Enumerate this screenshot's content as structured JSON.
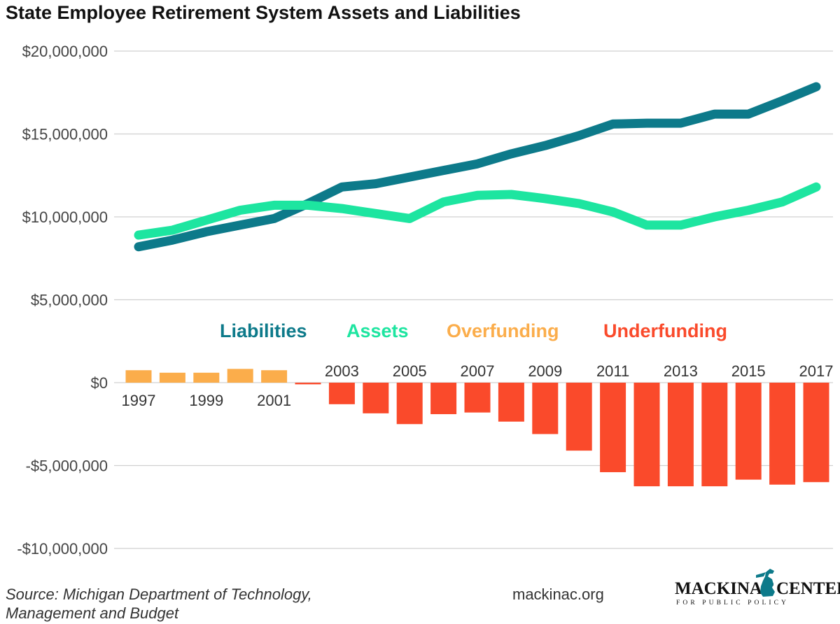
{
  "chart_data": {
    "type": "line+bar",
    "title": "State Employee Retirement System Assets and Liabilities",
    "ylim": [
      -10000000,
      20000000
    ],
    "yticks": [
      20000000,
      15000000,
      10000000,
      5000000,
      0,
      -5000000,
      -10000000
    ],
    "ytick_labels": [
      "$20,000,000",
      "$15,000,000",
      "$10,000,000",
      "$5,000,000",
      "$0",
      "-$5,000,000",
      "-$10,000,000"
    ],
    "x": [
      1997,
      1998,
      1999,
      2000,
      2001,
      2002,
      2003,
      2004,
      2005,
      2006,
      2007,
      2008,
      2009,
      2010,
      2011,
      2012,
      2013,
      2014,
      2015,
      2016,
      2017
    ],
    "xtick_labels": [
      "1997",
      "1999",
      "2001",
      "2003",
      "2005",
      "2007",
      "2009",
      "2011",
      "2013",
      "2015",
      "2017"
    ],
    "grid": true,
    "legend_position": "center",
    "series": [
      {
        "name": "Liabilities",
        "kind": "line",
        "color": "#0d7a8a",
        "values": [
          8200000,
          8600000,
          9100000,
          9500000,
          9900000,
          10800000,
          11800000,
          12000000,
          12400000,
          12800000,
          13200000,
          13800000,
          14300000,
          14900000,
          15600000,
          15650000,
          15650000,
          16200000,
          16200000,
          17000000,
          17850000
        ]
      },
      {
        "name": "Assets",
        "kind": "line",
        "color": "#1de5a0",
        "values": [
          8900000,
          9200000,
          9800000,
          10400000,
          10700000,
          10700000,
          10500000,
          10200000,
          9900000,
          10900000,
          11300000,
          11350000,
          11100000,
          10800000,
          10300000,
          9500000,
          9500000,
          10000000,
          10400000,
          10900000,
          11800000
        ]
      },
      {
        "name": "Overfunding",
        "kind": "bar",
        "color": "#fbad4b",
        "values": [
          750000,
          600000,
          600000,
          830000,
          750000,
          null,
          null,
          null,
          null,
          null,
          null,
          null,
          null,
          null,
          null,
          null,
          null,
          null,
          null,
          null,
          null
        ]
      },
      {
        "name": "Underfunding",
        "kind": "bar",
        "color": "#fa4a2b",
        "values": [
          null,
          null,
          null,
          null,
          null,
          -100000,
          -1300000,
          -1850000,
          -2500000,
          -1900000,
          -1800000,
          -2350000,
          -3100000,
          -4100000,
          -5400000,
          -6250000,
          -6250000,
          -6250000,
          -5850000,
          -6150000,
          -6000000
        ]
      }
    ]
  },
  "footer": {
    "source_line1": "Source: Michigan Department of Technology,",
    "source_line2": "Management and Budget",
    "website": "mackinac.org",
    "logo_main": "MACKINAC",
    "logo_main2": "CENTER",
    "logo_sub": "FOR PUBLIC POLICY",
    "logo_icon": "michigan-mitten-icon",
    "logo_color": "#0d7a8a"
  }
}
